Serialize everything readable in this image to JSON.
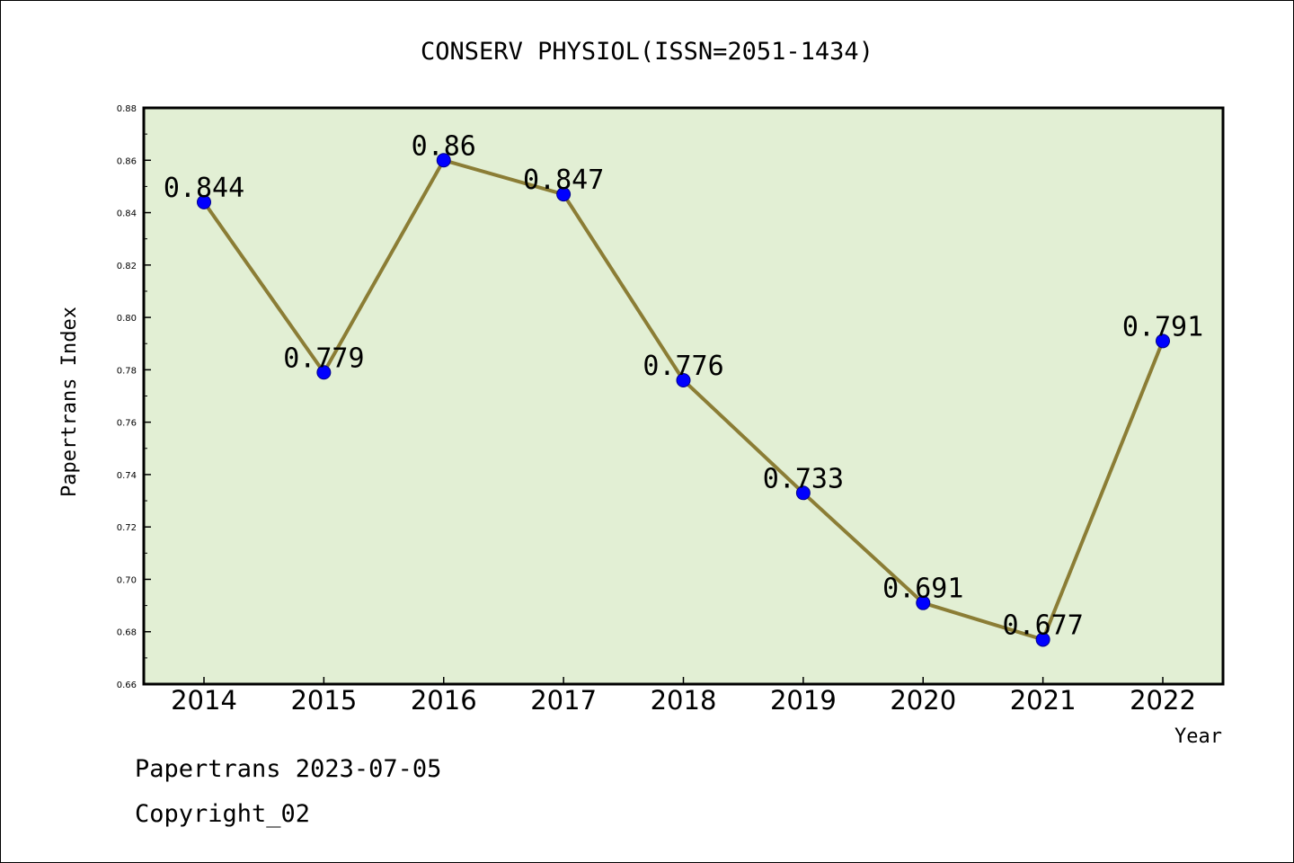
{
  "chart_data": {
    "type": "line",
    "title": "CONSERV PHYSIOL(ISSN=2051-1434)",
    "xlabel": "Year",
    "ylabel": "Papertrans Index",
    "categories": [
      "2014",
      "2015",
      "2016",
      "2017",
      "2018",
      "2019",
      "2020",
      "2021",
      "2022"
    ],
    "series": [
      {
        "values": [
          0.844,
          0.779,
          0.86,
          0.847,
          0.776,
          0.733,
          0.691,
          0.677,
          0.791
        ]
      }
    ],
    "data_labels": [
      "0.844",
      "0.779",
      "0.86",
      "0.847",
      "0.776",
      "0.733",
      "0.691",
      "0.677",
      "0.791"
    ],
    "ylim": [
      0.66,
      0.88
    ],
    "yticks": [
      "0.66",
      "0.68",
      "0.70",
      "0.72",
      "0.74",
      "0.76",
      "0.78",
      "0.80",
      "0.82",
      "0.84",
      "0.86",
      "0.88"
    ],
    "grid": false,
    "colors": {
      "line": "#8b7d35",
      "marker": "#0000ff",
      "plot_background": "#e2efd4"
    }
  },
  "footer": {
    "line1": "Papertrans 2023-07-05",
    "line2": "Copyright_02"
  }
}
